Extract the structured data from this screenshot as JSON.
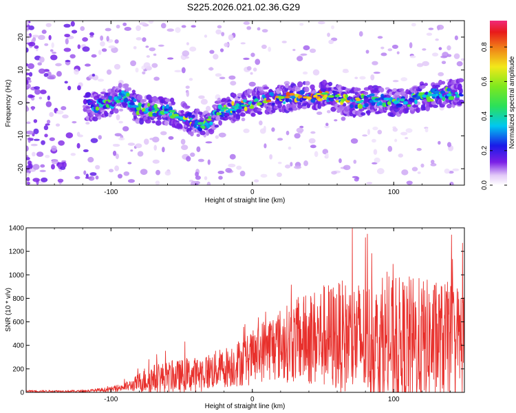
{
  "title": "S225.2026.021.02.36.G29",
  "chart_data": [
    {
      "type": "heatmap",
      "name": "spectrogram",
      "xlabel": "Height of straight line (km)",
      "ylabel": "Frequency (Hz)",
      "xlim": [
        -160,
        150
      ],
      "ylim": [
        -25,
        25
      ],
      "xticks": [
        -100,
        0,
        100
      ],
      "yticks": [
        -20,
        -10,
        0,
        10,
        20
      ],
      "colorbar": {
        "label": "Normalized spectral amplitude",
        "range": [
          0.0,
          0.9
        ],
        "ticks": [
          0.0,
          0.2,
          0.4,
          0.6,
          0.8
        ]
      },
      "ridge": [
        {
          "x": -110,
          "f": -1,
          "amp": 0.35
        },
        {
          "x": -100,
          "f": 0,
          "amp": 0.3
        },
        {
          "x": -90,
          "f": 2,
          "amp": 0.3
        },
        {
          "x": -80,
          "f": -2,
          "amp": 0.45
        },
        {
          "x": -60,
          "f": -2.5,
          "amp": 0.5
        },
        {
          "x": -45,
          "f": -5,
          "amp": 0.55
        },
        {
          "x": -35,
          "f": -7,
          "amp": 0.5
        },
        {
          "x": -25,
          "f": -3,
          "amp": 0.6
        },
        {
          "x": -10,
          "f": -1,
          "amp": 0.7
        },
        {
          "x": 0,
          "f": 0,
          "amp": 0.75
        },
        {
          "x": 10,
          "f": 1,
          "amp": 0.8
        },
        {
          "x": 20,
          "f": 1.5,
          "amp": 0.85
        },
        {
          "x": 35,
          "f": 2,
          "amp": 0.8
        },
        {
          "x": 50,
          "f": 2.5,
          "amp": 0.85
        },
        {
          "x": 60,
          "f": 1.5,
          "amp": 0.6
        },
        {
          "x": 70,
          "f": 0,
          "amp": 0.75
        },
        {
          "x": 85,
          "f": 1,
          "amp": 0.45
        },
        {
          "x": 105,
          "f": 0,
          "amp": 0.4
        },
        {
          "x": 120,
          "f": 2,
          "amp": 0.45
        },
        {
          "x": 140,
          "f": 3,
          "amp": 0.35
        }
      ]
    },
    {
      "type": "line",
      "name": "snr",
      "xlabel": "Height of straight line (km)",
      "ylabel": "SNR (10 * v/v)",
      "xlim": [
        -160,
        150
      ],
      "ylim": [
        0,
        1400
      ],
      "xticks": [
        -100,
        0,
        100
      ],
      "yticks": [
        0,
        200,
        400,
        600,
        800,
        1000,
        1200,
        1400
      ],
      "color": "#e8302c",
      "envelope": {
        "x": [
          -160,
          -120,
          -100,
          -85,
          -75,
          -60,
          -40,
          -20,
          0,
          10,
          30,
          50,
          70,
          90,
          110,
          130,
          150
        ],
        "base": [
          10,
          10,
          25,
          60,
          110,
          130,
          150,
          210,
          290,
          380,
          430,
          480,
          460,
          420,
          400,
          430,
          450
        ],
        "amp": [
          8,
          10,
          20,
          50,
          120,
          130,
          150,
          170,
          230,
          280,
          350,
          450,
          500,
          520,
          600,
          520,
          480
        ]
      }
    }
  ]
}
